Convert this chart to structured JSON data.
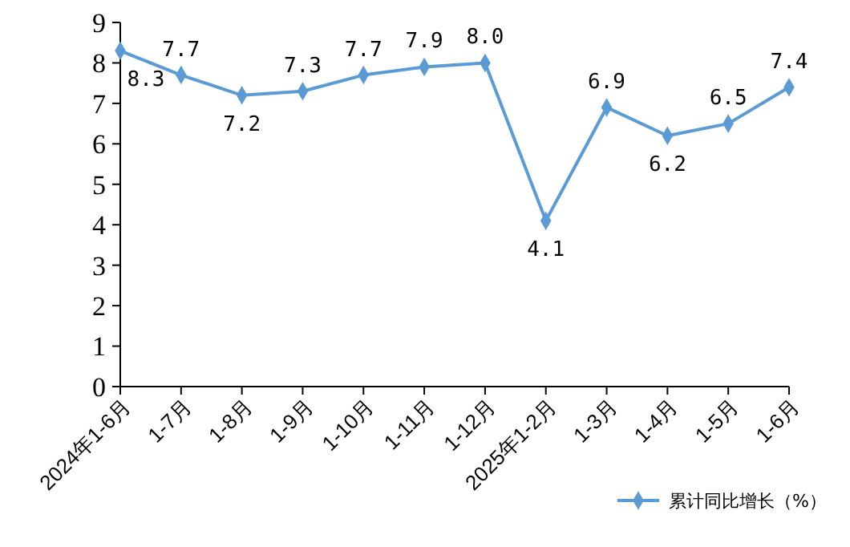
{
  "chart_data": {
    "type": "line",
    "categories": [
      "2024年1-6月",
      "1-7月",
      "1-8月",
      "1-9月",
      "1-10月",
      "1-11月",
      "1-12月",
      "2025年1-2月",
      "1-3月",
      "1-4月",
      "1-5月",
      "1-6月"
    ],
    "series": [
      {
        "name": "累计同比增长（%）",
        "color": "#5b9bd5",
        "values": [
          8.3,
          7.7,
          7.2,
          7.3,
          7.7,
          7.9,
          8.0,
          4.1,
          6.9,
          6.2,
          6.5,
          7.4
        ],
        "value_labels": [
          "8.3",
          "7.7",
          "7.2",
          "7.3",
          "7.7",
          "7.9",
          "8.0",
          "4.1",
          "6.9",
          "6.2",
          "6.5",
          "7.4"
        ]
      }
    ],
    "ylim": [
      0,
      9
    ],
    "yticks": [
      0,
      1,
      2,
      3,
      4,
      5,
      6,
      7,
      8,
      9
    ],
    "grid": false,
    "legend": "bottom",
    "marker": "diamond",
    "line_style": "solid"
  }
}
